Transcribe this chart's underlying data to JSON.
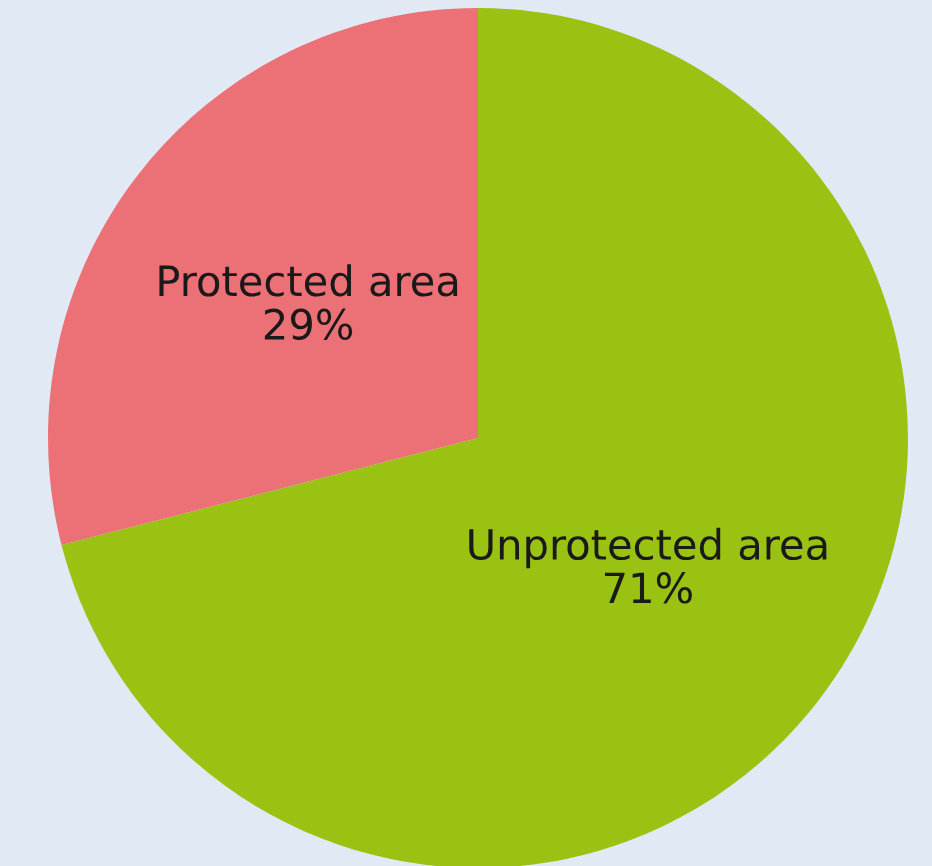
{
  "chart_data": {
    "type": "pie",
    "categories": [
      "Unprotected area",
      "Protected area"
    ],
    "values": [
      71,
      29
    ],
    "value_labels": [
      "71%",
      "29%"
    ],
    "colors": [
      "#99c213",
      "#ec7177"
    ]
  }
}
